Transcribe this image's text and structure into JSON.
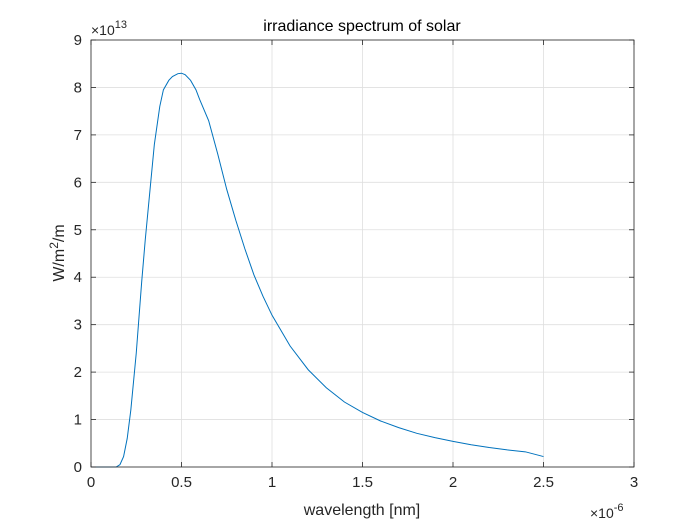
{
  "chart_data": {
    "type": "line",
    "title": "irradiance spectrum of solar",
    "xlabel": "wavelength [nm]",
    "ylabel": {
      "base": "W/m",
      "sup": "2",
      "tail": "/m"
    },
    "x_scale_note": {
      "mult": "×10",
      "exp": "-6"
    },
    "y_scale_note": {
      "mult": "×10",
      "exp": "13"
    },
    "xlim": [
      0,
      3
    ],
    "ylim": [
      0,
      9
    ],
    "xticks": [
      0,
      0.5,
      1,
      1.5,
      2,
      2.5,
      3
    ],
    "xtick_labels": [
      "0",
      "0.5",
      "1",
      "1.5",
      "2",
      "2.5",
      "3"
    ],
    "yticks": [
      0,
      1,
      2,
      3,
      4,
      5,
      6,
      7,
      8,
      9
    ],
    "ytick_labels": [
      "0",
      "1",
      "2",
      "3",
      "4",
      "5",
      "6",
      "7",
      "8",
      "9"
    ],
    "grid": true,
    "line_color": "#0072BD",
    "series": [
      {
        "x": [
          0,
          0.05,
          0.1,
          0.14,
          0.16,
          0.18,
          0.2,
          0.22,
          0.25,
          0.28,
          0.3,
          0.33,
          0.35,
          0.38,
          0.4,
          0.43,
          0.45,
          0.48,
          0.5,
          0.52,
          0.55,
          0.58,
          0.6,
          0.65,
          0.7,
          0.75,
          0.8,
          0.85,
          0.9,
          0.95,
          1.0,
          1.1,
          1.2,
          1.3,
          1.4,
          1.5,
          1.6,
          1.7,
          1.8,
          1.9,
          2.0,
          2.1,
          2.2,
          2.3,
          2.4,
          2.5
        ],
        "values": [
          0,
          0,
          0,
          0.002,
          0.05,
          0.22,
          0.6,
          1.2,
          2.4,
          3.9,
          4.8,
          6.0,
          6.8,
          7.6,
          7.95,
          8.15,
          8.23,
          8.29,
          8.3,
          8.27,
          8.15,
          7.95,
          7.75,
          7.3,
          6.6,
          5.85,
          5.2,
          4.6,
          4.05,
          3.6,
          3.2,
          2.55,
          2.05,
          1.67,
          1.37,
          1.15,
          0.97,
          0.83,
          0.71,
          0.62,
          0.54,
          0.47,
          0.41,
          0.36,
          0.32,
          0.22
        ]
      }
    ]
  }
}
